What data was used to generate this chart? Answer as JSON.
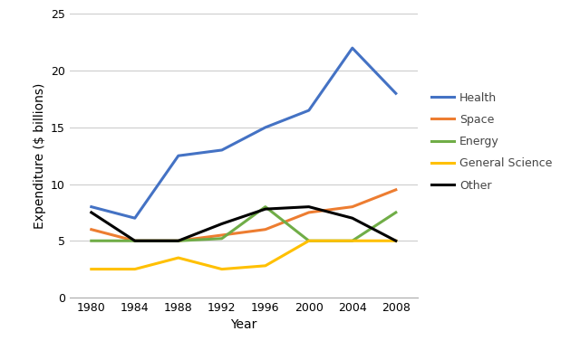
{
  "years": [
    1980,
    1984,
    1988,
    1992,
    1996,
    2000,
    2004,
    2008
  ],
  "series": {
    "Health": {
      "values": [
        8.0,
        7.0,
        12.5,
        13.0,
        15.0,
        16.5,
        22.0,
        18.0
      ],
      "color": "#4472C4",
      "label": "Health"
    },
    "Space": {
      "values": [
        6.0,
        5.0,
        5.0,
        5.5,
        6.0,
        7.5,
        8.0,
        9.5
      ],
      "color": "#ED7D31",
      "label": "Space"
    },
    "Energy": {
      "values": [
        5.0,
        5.0,
        5.0,
        5.2,
        8.0,
        5.0,
        5.0,
        7.5
      ],
      "color": "#70AD47",
      "label": "Energy"
    },
    "General Science": {
      "values": [
        2.5,
        2.5,
        3.5,
        2.5,
        2.8,
        5.0,
        5.0,
        5.0
      ],
      "color": "#FFC000",
      "label": "General Science"
    },
    "Other": {
      "values": [
        7.5,
        5.0,
        5.0,
        6.5,
        7.8,
        8.0,
        7.0,
        5.0
      ],
      "color": "#000000",
      "label": "Other"
    }
  },
  "xlabel": "Year",
  "ylabel": "Expenditure ($ billions)",
  "ylim": [
    0,
    25
  ],
  "yticks": [
    0,
    5,
    10,
    15,
    20,
    25
  ],
  "xticks": [
    1980,
    1984,
    1988,
    1992,
    1996,
    2000,
    2004,
    2008
  ],
  "xlim": [
    1978,
    2010
  ],
  "legend_order": [
    "Health",
    "Space",
    "Energy",
    "General Science",
    "Other"
  ],
  "background_color": "#ffffff",
  "linewidth": 2.2,
  "grid_color": "#cccccc",
  "tick_fontsize": 9,
  "label_fontsize": 10,
  "legend_fontsize": 9
}
